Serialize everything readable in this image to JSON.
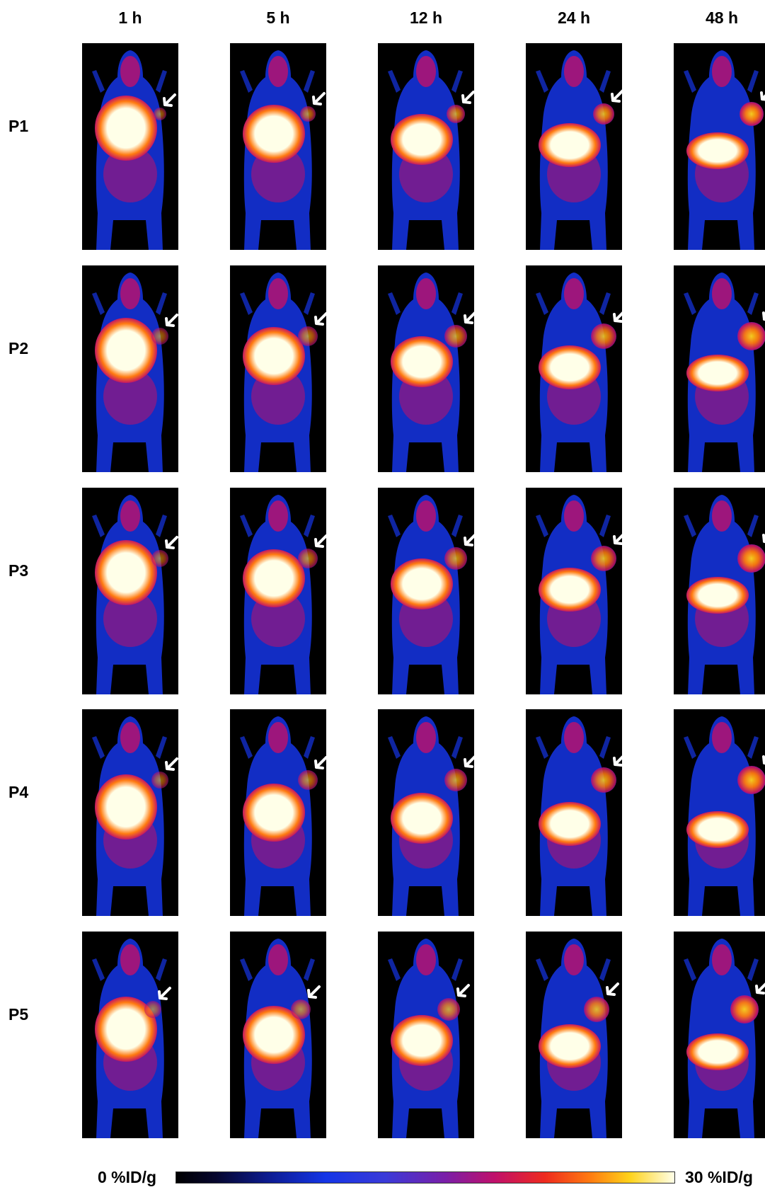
{
  "columns": [
    "1 h",
    "5 h",
    "12 h",
    "24 h",
    "48 h"
  ],
  "rows": [
    "P1",
    "P2",
    "P3",
    "P4",
    "P5"
  ],
  "colorbar": {
    "min_label": "0 %ID/g",
    "max_label": "30 %ID/g"
  },
  "colors": {
    "background": "#000000",
    "low": "#1535e6",
    "mid": "#c0106a",
    "high": "#ff7a10",
    "max": "#ffffe8",
    "arrow": "#ffffff"
  }
}
